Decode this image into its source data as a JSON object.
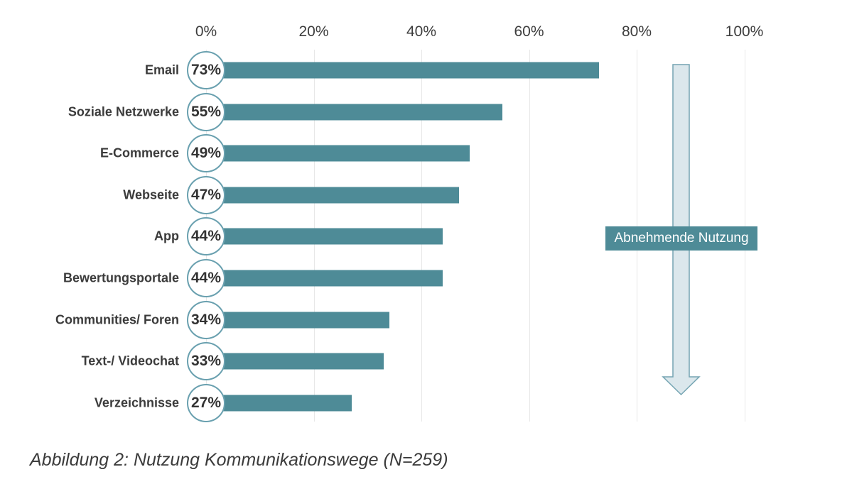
{
  "chart_data": {
    "type": "bar",
    "orientation": "horizontal",
    "categories": [
      "Email",
      "Soziale Netzwerke",
      "E-Commerce",
      "Webseite",
      "App",
      "Bewertungsportale",
      "Communities/ Foren",
      "Text-/ Videochat",
      "Verzeichnisse"
    ],
    "values": [
      73,
      55,
      49,
      47,
      44,
      44,
      34,
      33,
      27
    ],
    "value_labels": [
      "73%",
      "55%",
      "49%",
      "47%",
      "44%",
      "44%",
      "34%",
      "33%",
      "27%"
    ],
    "x_ticks": [
      0,
      20,
      40,
      60,
      80,
      100
    ],
    "x_tick_labels": [
      "0%",
      "20%",
      "40%",
      "60%",
      "80%",
      "100%"
    ],
    "xlim": [
      0,
      100
    ],
    "grid": "vertical",
    "legend": "none",
    "annotation": {
      "arrow_direction": "down",
      "label": "Abnehmende Nutzung"
    },
    "caption": "Abbildung 2: Nutzung Kommunikationswege (N=259)",
    "colors": {
      "bar": "#4e8b97",
      "badge_border": "#69a0af",
      "badge_background": "#ffffff",
      "annotation_box": "#4e8b97",
      "annotation_text": "#ffffff",
      "arrow_fill": "#dbe7ec",
      "arrow_stroke": "#74a4b2",
      "gridline": "#e7e7e7",
      "text": "#3b3b3b"
    }
  }
}
